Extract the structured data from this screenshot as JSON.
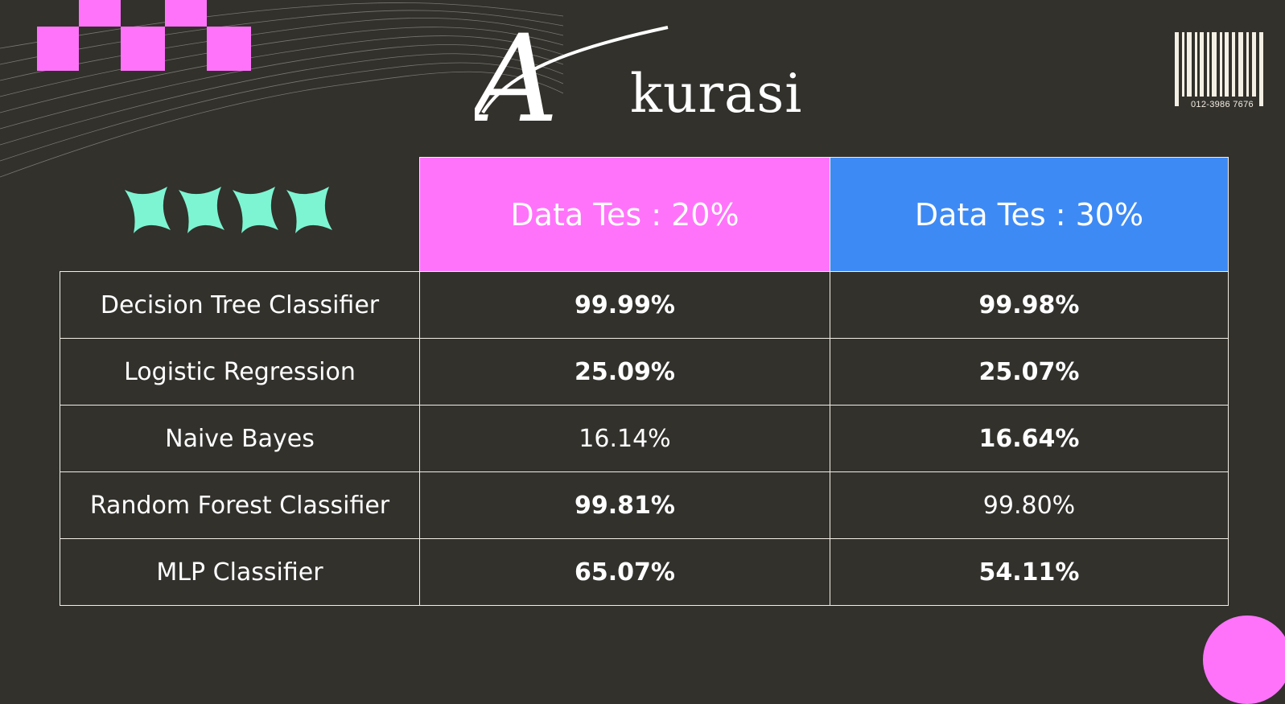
{
  "title": "kurasi",
  "title_initial": "A",
  "barcode_text": "012-3986  7676",
  "colors": {
    "background": "#32312c",
    "accent_pink": "#ff73fb",
    "accent_blue": "#3e8af5",
    "stars": "#7df5d2"
  },
  "table": {
    "headers": [
      "",
      "Data Tes : 20%",
      "Data Tes : 30%"
    ],
    "rows": [
      {
        "model": "Decision Tree Classifier",
        "v20": "99.99%",
        "v30": "99.98%"
      },
      {
        "model": "Logistic Regression",
        "v20": "25.09%",
        "v30": "25.07%"
      },
      {
        "model": "Naive Bayes",
        "v20": "16.14%",
        "v30": "16.64%"
      },
      {
        "model": "Random Forest Classifier",
        "v20": "99.81%",
        "v30": "99.80%"
      },
      {
        "model": "MLP Classifier",
        "v20": "65.07%",
        "v30": "54.11%"
      }
    ]
  }
}
